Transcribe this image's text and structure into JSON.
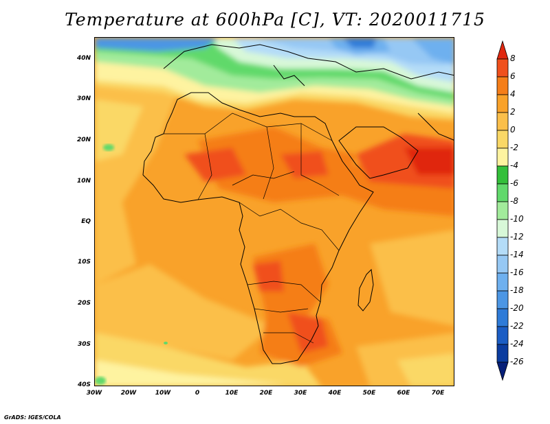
{
  "title": "Temperature at 600hPa [C], VT: 2020011715",
  "credit": "GrADS: IGES/COLA",
  "lat_labels": [
    "40N",
    "30N",
    "20N",
    "10N",
    "EQ",
    "10S",
    "20S",
    "30S",
    "40S"
  ],
  "lon_labels": [
    "30W",
    "20W",
    "10W",
    "0",
    "10E",
    "20E",
    "30E",
    "40E",
    "50E",
    "60E",
    "70E"
  ],
  "colorbar": {
    "labels": [
      "8",
      "6",
      "4",
      "2",
      "0",
      "-2",
      "-4",
      "-6",
      "-8",
      "-10",
      "-12",
      "-14",
      "-16",
      "-18",
      "-20",
      "-22",
      "-24",
      "-26"
    ],
    "colors": [
      "#e02810",
      "#f0501c",
      "#f57e19",
      "#f9a22a",
      "#fbbf4a",
      "#fad866",
      "#fef3a0",
      "#33bf3a",
      "#61d96b",
      "#a2eb9b",
      "#d8f8d8",
      "#b4dcf8",
      "#96c8f4",
      "#6eb0ef",
      "#4c96e4",
      "#2e7bd8",
      "#1b5dc4",
      "#0b3c9f",
      "#061f78"
    ]
  }
}
